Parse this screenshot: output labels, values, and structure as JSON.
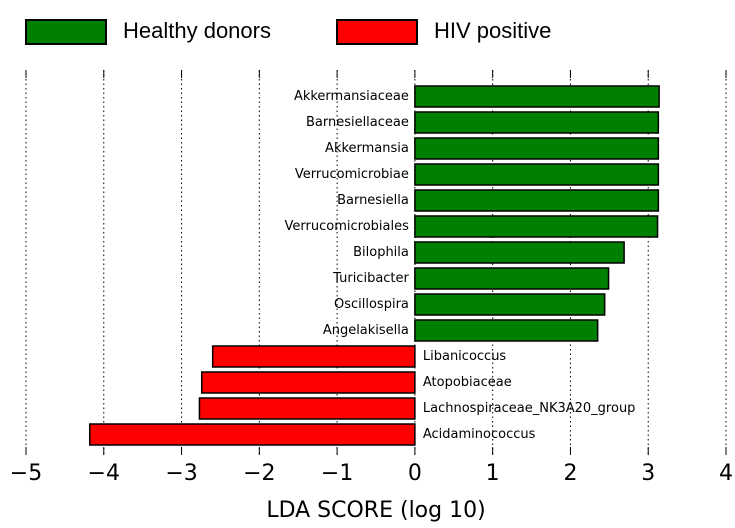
{
  "chart_data": {
    "type": "barh",
    "xlabel": "LDA SCORE (log 10)",
    "categories": [
      "Akkermansiaceae",
      "Barnesiellaceae",
      "Akkermansia",
      "Verrucomicrobiae",
      "Barnesiella",
      "Verrucomicrobiales",
      "Bilophila",
      "Turicibacter",
      "Oscillospira",
      "Angelakisella",
      "Libanicoccus",
      "Atopobiaceae",
      "Lachnospiraceae_NK3A20_group",
      "Acidaminococcus"
    ],
    "series": [
      {
        "name": "Healthy donors",
        "color": "#008000",
        "values": [
          3.14,
          3.13,
          3.13,
          3.13,
          3.13,
          3.12,
          2.69,
          2.49,
          2.44,
          2.35,
          null,
          null,
          null,
          null
        ]
      },
      {
        "name": "HIV positive",
        "color": "#ff0000",
        "values": [
          null,
          null,
          null,
          null,
          null,
          null,
          null,
          null,
          null,
          null,
          -2.6,
          -2.74,
          -2.77,
          -4.18
        ]
      }
    ],
    "xlim": [
      -5,
      4
    ],
    "xticks": [
      {
        "value": -5,
        "label": "−5"
      },
      {
        "value": -4,
        "label": "−4"
      },
      {
        "value": -3,
        "label": "−3"
      },
      {
        "value": -2,
        "label": "−2"
      },
      {
        "value": -1,
        "label": "−1"
      },
      0,
      1,
      2,
      3,
      4
    ],
    "grid": true,
    "legend": "top"
  }
}
